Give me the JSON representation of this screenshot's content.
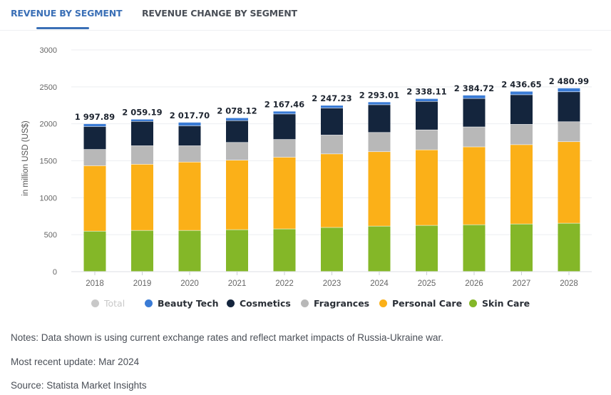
{
  "tabs": [
    {
      "label": "REVENUE BY SEGMENT",
      "active": true
    },
    {
      "label": "REVENUE CHANGE BY SEGMENT",
      "active": false
    }
  ],
  "chart_data": {
    "type": "bar",
    "stacked": true,
    "title": "",
    "xlabel": "",
    "ylabel": "in million USD (US$)",
    "ylim": [
      0,
      3000
    ],
    "yticks": [
      0,
      500,
      1000,
      1500,
      2000,
      2500,
      3000
    ],
    "grid": true,
    "categories": [
      "2018",
      "2019",
      "2020",
      "2021",
      "2022",
      "2023",
      "2024",
      "2025",
      "2026",
      "2027",
      "2028"
    ],
    "totals": [
      "1 997.89",
      "2 059.19",
      "2 017.70",
      "2 078.12",
      "2 167.46",
      "2 247.23",
      "2 293.01",
      "2 338.11",
      "2 384.72",
      "2 436.65",
      "2 480.99"
    ],
    "total_values": [
      1997.89,
      2059.19,
      2017.7,
      2078.12,
      2167.46,
      2247.23,
      2293.01,
      2338.11,
      2384.72,
      2436.65,
      2480.99
    ],
    "series": [
      {
        "name": "Skin Care",
        "color": "#84b728",
        "values": [
          545,
          555,
          555,
          565,
          575,
          595,
          613,
          623,
          632,
          642,
          652
        ]
      },
      {
        "name": "Personal Care",
        "color": "#fbb018",
        "values": [
          885,
          895,
          925,
          940,
          970,
          995,
          1007,
          1022,
          1053,
          1073,
          1103
        ]
      },
      {
        "name": "Fragrances",
        "color": "#b8b8b8",
        "values": [
          220,
          250,
          220,
          240,
          240,
          255,
          260,
          270,
          270,
          275,
          270
        ]
      },
      {
        "name": "Cosmetics",
        "color": "#14253d",
        "values": [
          310,
          330,
          270,
          295,
          345,
          365,
          375,
          385,
          385,
          400,
          405
        ]
      },
      {
        "name": "Beauty Tech",
        "color": "#3a7bd5",
        "values": [
          37.89,
          29.19,
          47.7,
          38.12,
          37.46,
          37.23,
          38.01,
          38.11,
          44.72,
          46.65,
          50.99
        ]
      }
    ],
    "legend": {
      "placement": "bottom",
      "items": [
        {
          "label": "Total",
          "color": "#c8c8c8",
          "disabled": true
        },
        {
          "label": "Beauty Tech",
          "color": "#3a7bd5",
          "disabled": false
        },
        {
          "label": "Cosmetics",
          "color": "#14253d",
          "disabled": false
        },
        {
          "label": "Fragrances",
          "color": "#b8b8b8",
          "disabled": false
        },
        {
          "label": "Personal Care",
          "color": "#fbb018",
          "disabled": false
        },
        {
          "label": "Skin Care",
          "color": "#84b728",
          "disabled": false
        }
      ]
    }
  },
  "notes": {
    "note": "Notes: Data shown is using current exchange rates and reflect market impacts of Russia-Ukraine war.",
    "update": "Most recent update: Mar 2024",
    "source": "Source: Statista Market Insights"
  }
}
